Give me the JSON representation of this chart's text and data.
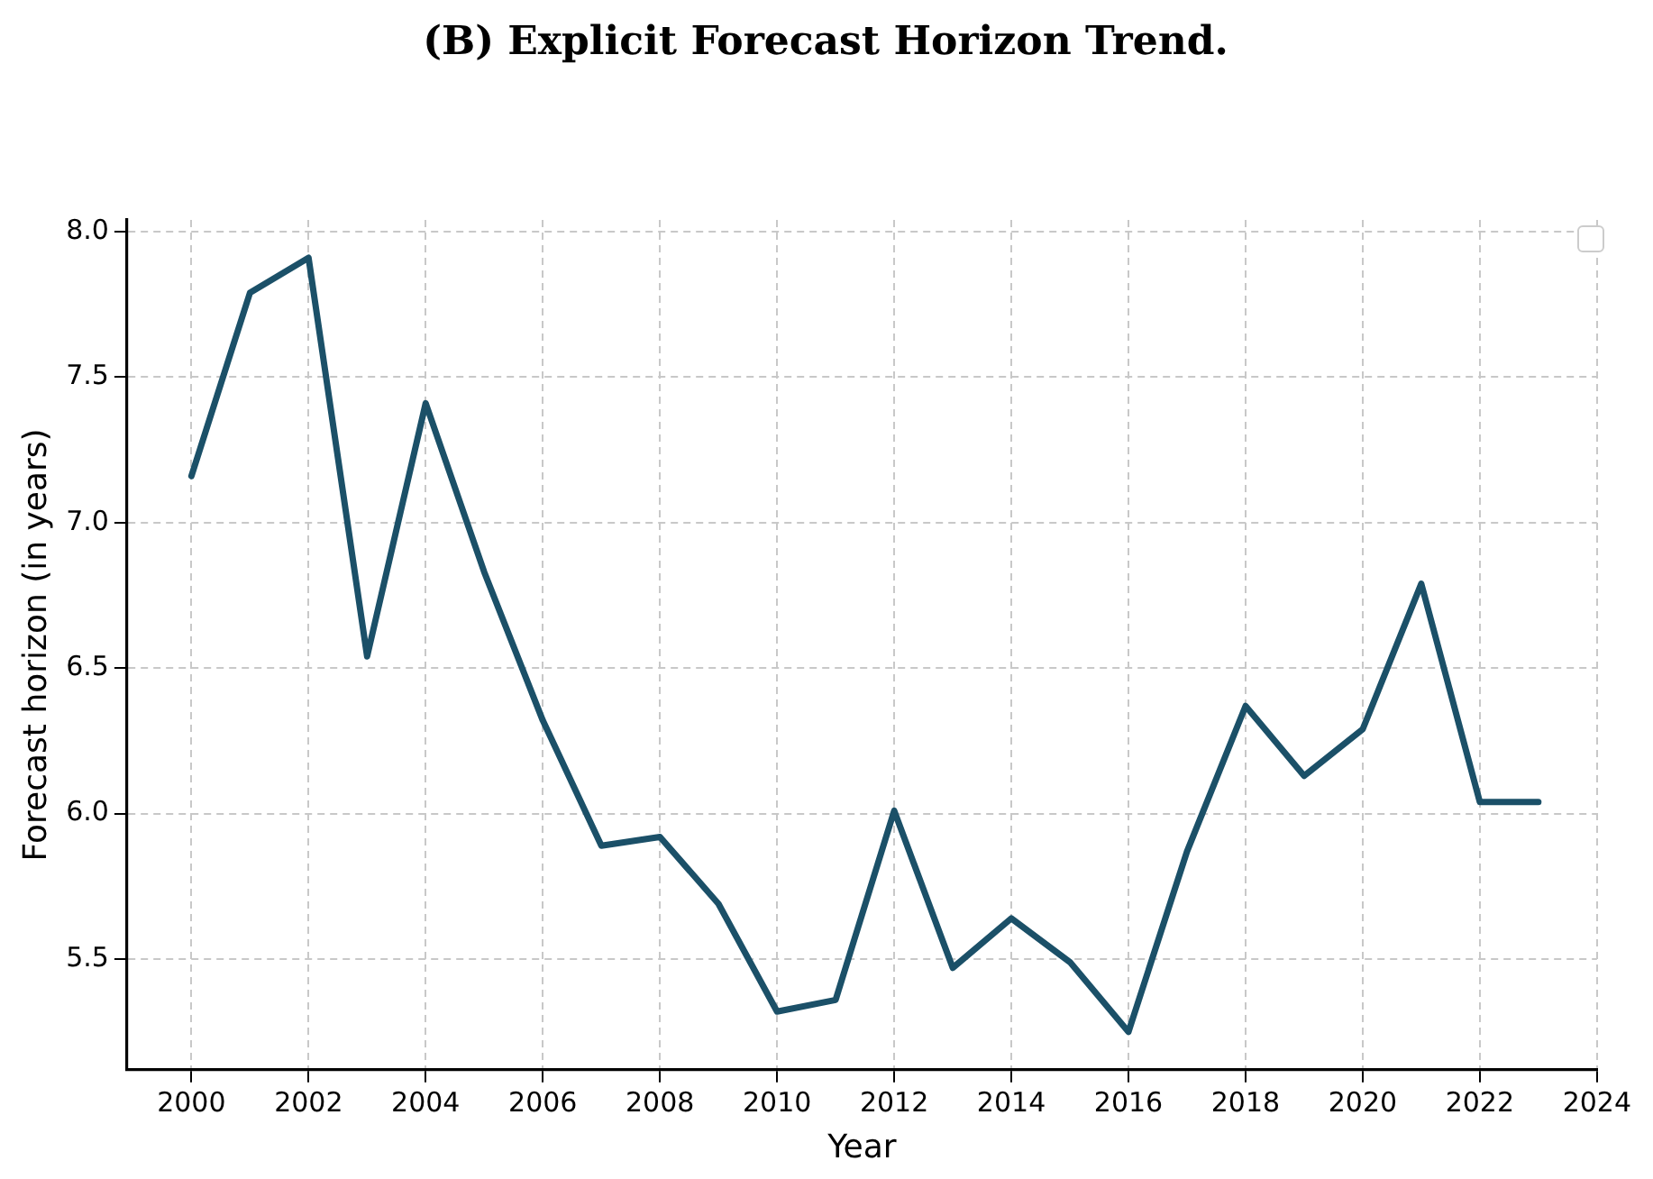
{
  "chart_data": {
    "type": "line",
    "title": "(B) Explicit Forecast Horizon Trend.",
    "xlabel": "Year",
    "ylabel": "Forecast horizon (in years)",
    "x": [
      2000,
      2001,
      2002,
      2003,
      2004,
      2005,
      2006,
      2007,
      2008,
      2009,
      2010,
      2011,
      2012,
      2013,
      2014,
      2015,
      2016,
      2017,
      2018,
      2019,
      2020,
      2021,
      2022,
      2023
    ],
    "series": [
      {
        "color": "#1b5068",
        "values": [
          7.16,
          7.79,
          7.91,
          6.54,
          7.41,
          6.83,
          6.32,
          5.89,
          5.92,
          5.69,
          5.32,
          5.36,
          6.01,
          5.47,
          5.64,
          5.49,
          5.25,
          5.87,
          6.37,
          6.13,
          6.29,
          6.79,
          6.04,
          6.04
        ]
      }
    ],
    "xlim": [
      1998.9,
      2024.0
    ],
    "xticks": [
      2000,
      2002,
      2004,
      2006,
      2008,
      2010,
      2012,
      2014,
      2016,
      2018,
      2020,
      2022,
      2024
    ],
    "ylim": [
      5.12,
      8.04
    ],
    "yticks": [
      {
        "value": 5.5,
        "label": "5.5"
      },
      {
        "value": 6,
        "label": "6.0"
      },
      {
        "value": 6.5,
        "label": "6.5"
      },
      {
        "value": 7,
        "label": "7.0"
      },
      {
        "value": 7.5,
        "label": "7.5"
      },
      {
        "value": 8,
        "label": "8.0"
      }
    ],
    "grid": true,
    "line_style": "solid",
    "marker": "none"
  }
}
